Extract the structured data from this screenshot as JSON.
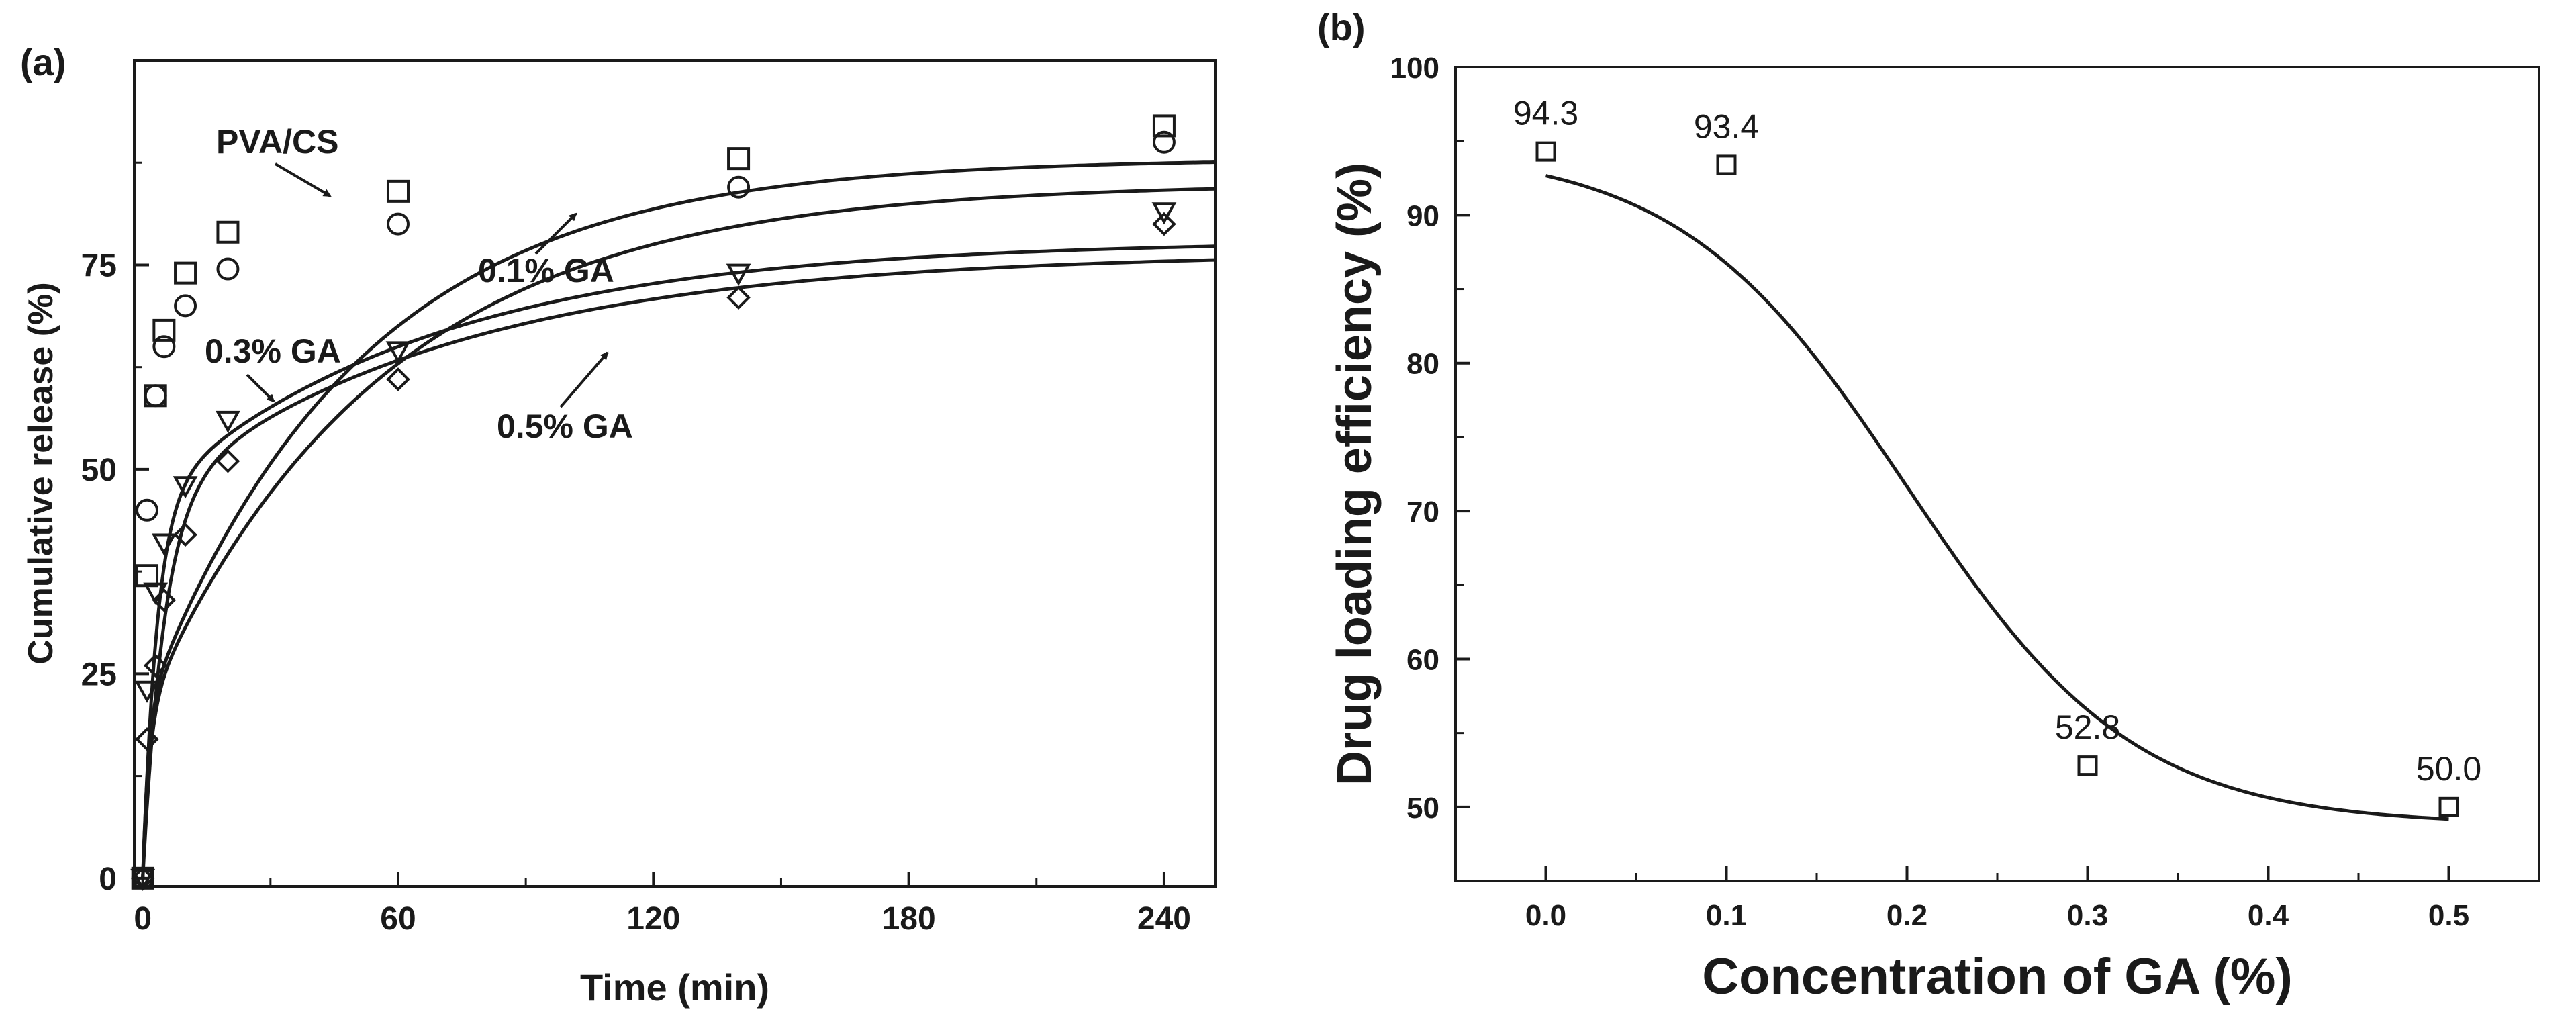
{
  "chart_data": [
    {
      "panel_label": "(a)",
      "type": "scatter",
      "title": "",
      "xlabel": "Time (min)",
      "ylabel": "Cumulative release (%)",
      "xlim": [
        -2,
        252
      ],
      "ylim": [
        -1,
        100
      ],
      "xticks": [
        "0",
        "60",
        "120",
        "180",
        "240"
      ],
      "yticks": [
        "0",
        "25",
        "50",
        "75"
      ],
      "x": [
        0,
        1,
        3,
        5,
        10,
        20,
        60,
        140,
        240
      ],
      "series": [
        {
          "name": "PVA/CS",
          "marker": "square",
          "values": [
            0,
            37,
            59,
            67,
            74,
            79,
            84,
            88,
            92
          ],
          "fit": {
            "a": 20,
            "b": 68,
            "k": 0.75,
            "d": 0.02
          }
        },
        {
          "name": "0.1% GA",
          "marker": "circle",
          "values": [
            0,
            45,
            59,
            65,
            70,
            74.5,
            80,
            84.5,
            90
          ],
          "fit": {
            "a": 20,
            "b": 65,
            "k": 0.6,
            "d": 0.018
          }
        },
        {
          "name": "0.3% GA",
          "marker": "triangle-down",
          "values": [
            0,
            23,
            35,
            41,
            48,
            56,
            64.5,
            74,
            81.5
          ],
          "fit": {
            "a": 46,
            "b": 32,
            "k": 0.3,
            "d": 0.015
          }
        },
        {
          "name": "0.5% GA",
          "marker": "diamond",
          "values": [
            0,
            17,
            26,
            34,
            42,
            51,
            61,
            71,
            80
          ],
          "fit": {
            "a": 46,
            "b": 30.5,
            "k": 0.2,
            "d": 0.014
          }
        }
      ],
      "annotations": [
        "PVA/CS",
        "0.1% GA",
        "0.3% GA",
        "0.5% GA"
      ]
    },
    {
      "panel_label": "(b)",
      "type": "scatter",
      "title": "",
      "xlabel": "Concentration of GA (%)",
      "ylabel": "Drug loading efficiency (%)",
      "xlim": [
        -0.05,
        0.55
      ],
      "ylim": [
        45,
        100
      ],
      "xticks": [
        "0.0",
        "0.1",
        "0.2",
        "0.3",
        "0.4",
        "0.5"
      ],
      "yticks": [
        "50",
        "60",
        "70",
        "80",
        "90",
        "100"
      ],
      "x": [
        0.0,
        0.1,
        0.3,
        0.5
      ],
      "series": [
        {
          "name": "Drug loading efficiency",
          "marker": "square",
          "values": [
            94.3,
            93.4,
            52.8,
            50.0
          ]
        }
      ],
      "data_labels": [
        "94.3",
        "93.4",
        "52.8",
        "50.0"
      ],
      "fit": {
        "type": "sigmoid",
        "a": 48.8,
        "b": 45.7,
        "x0": 0.2,
        "s": 0.063
      }
    }
  ]
}
